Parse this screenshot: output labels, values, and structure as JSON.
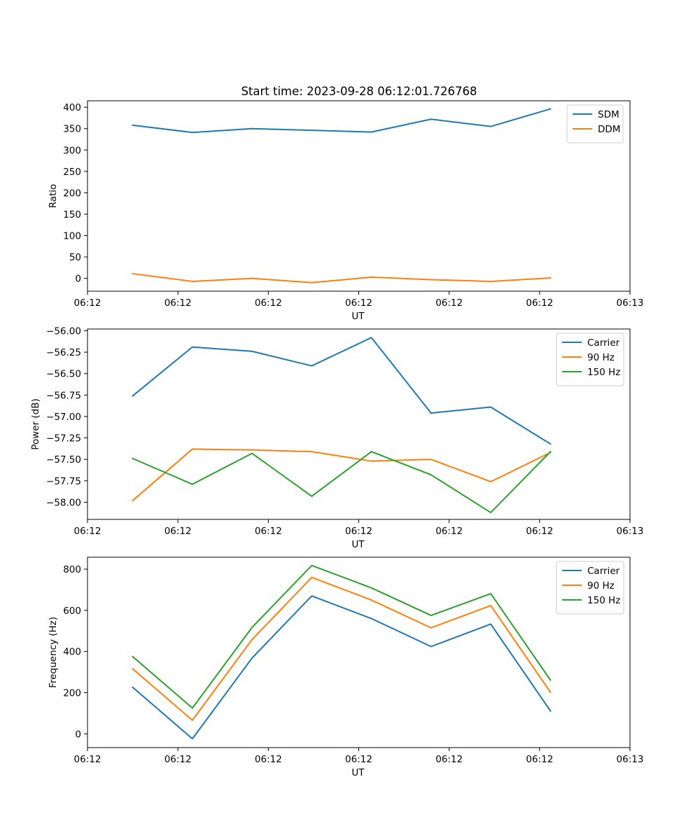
{
  "title": "Start time: 2023-09-28 06:12:01.726768",
  "chart_data": [
    {
      "type": "line",
      "xlabel": "UT",
      "ylabel": "Ratio",
      "xlim": [
        0,
        9
      ],
      "x_ticks": [
        0,
        1.5,
        3,
        4.5,
        6,
        7.5,
        9
      ],
      "x_tick_labels": [
        "06:12",
        "06:12",
        "06:12",
        "06:12",
        "06:12",
        "06:12",
        "06:13"
      ],
      "ylim": [
        -30,
        415
      ],
      "y_ticks": [
        0,
        50,
        100,
        150,
        200,
        250,
        300,
        350,
        400
      ],
      "y_tick_labels": [
        "0",
        "50",
        "100",
        "150",
        "200",
        "250",
        "300",
        "350",
        "400"
      ],
      "x": [
        0.75,
        1.74,
        2.73,
        3.72,
        4.71,
        5.7,
        6.69,
        7.68
      ],
      "legend_position": "top-right",
      "series": [
        {
          "name": "SDM",
          "color": "#1f77b4",
          "values": [
            358,
            341,
            350,
            346,
            342,
            372,
            355,
            396
          ]
        },
        {
          "name": "DDM",
          "color": "#ff7f0e",
          "values": [
            11,
            -7,
            0,
            -10,
            3,
            -3,
            -7,
            1
          ]
        }
      ]
    },
    {
      "type": "line",
      "xlabel": "UT",
      "ylabel": "Power (dB)",
      "xlim": [
        0,
        9
      ],
      "x_ticks": [
        0,
        1.5,
        3,
        4.5,
        6,
        7.5,
        9
      ],
      "x_tick_labels": [
        "06:12",
        "06:12",
        "06:12",
        "06:12",
        "06:12",
        "06:12",
        "06:13"
      ],
      "ylim": [
        -58.2,
        -55.98
      ],
      "y_ticks": [
        -58.0,
        -57.75,
        -57.5,
        -57.25,
        -57.0,
        -56.75,
        -56.5,
        -56.25,
        -56.0
      ],
      "y_tick_labels": [
        "−58.00",
        "−57.75",
        "−57.50",
        "−57.25",
        "−57.00",
        "−56.75",
        "−56.50",
        "−56.25",
        "−56.00"
      ],
      "x": [
        0.75,
        1.74,
        2.73,
        3.72,
        4.71,
        5.7,
        6.69,
        7.68
      ],
      "legend_position": "top-right",
      "series": [
        {
          "name": "Carrier",
          "color": "#1f77b4",
          "values": [
            -56.76,
            -56.19,
            -56.24,
            -56.41,
            -56.08,
            -56.96,
            -56.89,
            -57.32
          ]
        },
        {
          "name": "90 Hz",
          "color": "#ff7f0e",
          "values": [
            -57.98,
            -57.38,
            -57.39,
            -57.41,
            -57.52,
            -57.5,
            -57.76,
            -57.42
          ]
        },
        {
          "name": "150 Hz",
          "color": "#2ca02c",
          "values": [
            -57.49,
            -57.79,
            -57.43,
            -57.93,
            -57.41,
            -57.68,
            -58.12,
            -57.41
          ]
        }
      ]
    },
    {
      "type": "line",
      "xlabel": "UT",
      "ylabel": "Frequency (Hz)",
      "xlim": [
        0,
        9
      ],
      "x_ticks": [
        0,
        1.5,
        3,
        4.5,
        6,
        7.5,
        9
      ],
      "x_tick_labels": [
        "06:12",
        "06:12",
        "06:12",
        "06:12",
        "06:12",
        "06:12",
        "06:13"
      ],
      "ylim": [
        -67,
        858
      ],
      "y_ticks": [
        0,
        200,
        400,
        600,
        800
      ],
      "y_tick_labels": [
        "0",
        "200",
        "400",
        "600",
        "800"
      ],
      "x": [
        0.75,
        1.74,
        2.73,
        3.72,
        4.71,
        5.7,
        6.69,
        7.68
      ],
      "legend_position": "top-right",
      "series": [
        {
          "name": "Carrier",
          "color": "#1f77b4",
          "values": [
            226,
            -24,
            368,
            670,
            560,
            424,
            533,
            111
          ]
        },
        {
          "name": "90 Hz",
          "color": "#ff7f0e",
          "values": [
            316,
            66,
            458,
            760,
            650,
            515,
            623,
            202
          ]
        },
        {
          "name": "150 Hz",
          "color": "#2ca02c",
          "values": [
            375,
            125,
            517,
            818,
            709,
            575,
            681,
            261
          ]
        }
      ]
    }
  ]
}
